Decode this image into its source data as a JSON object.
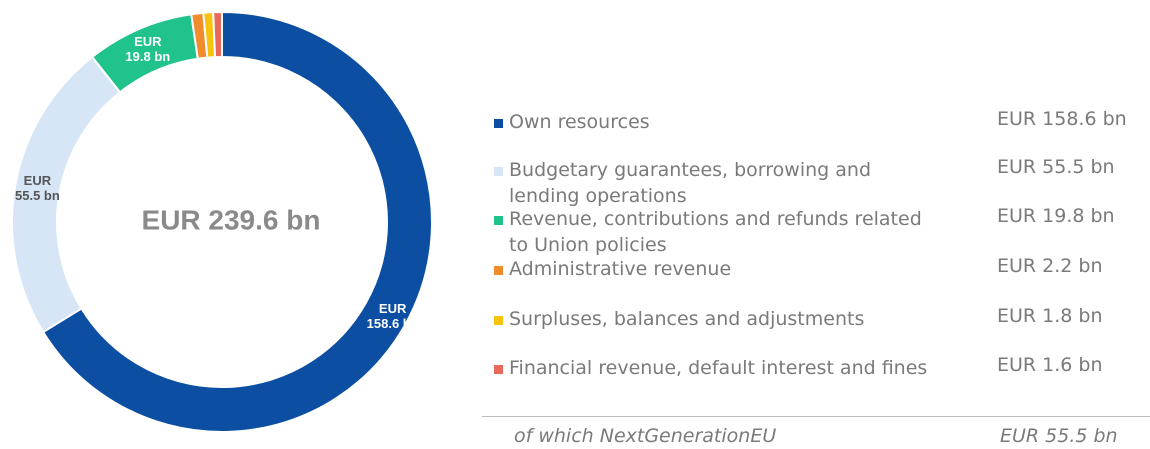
{
  "chart_data": {
    "type": "donut",
    "categories": [
      "Own resources",
      "Budgetary guarantees, borrowing and lending operations",
      "Revenue, contributions and refunds related to Union policies",
      "Administrative revenue",
      "Surpluses, balances and adjustments",
      "Financial revenue, default interest and fines"
    ],
    "values": [
      158.6,
      55.5,
      19.8,
      2.2,
      1.8,
      1.6
    ],
    "value_labels": [
      "EUR 158.6 bn",
      "EUR 55.5 bn",
      "EUR 19.8 bn",
      "EUR 2.2 bn",
      "EUR 1.8 bn",
      "EUR 1.6 bn"
    ],
    "colors": [
      "#0b4ea2",
      "#d6e6f7",
      "#20c38c",
      "#f08c2c",
      "#f7c30e",
      "#e8685a"
    ],
    "total_label": "EUR 239.6 bn",
    "footnote": {
      "label": "of which NextGenerationEU",
      "value_label": "EUR 55.5 bn"
    }
  }
}
